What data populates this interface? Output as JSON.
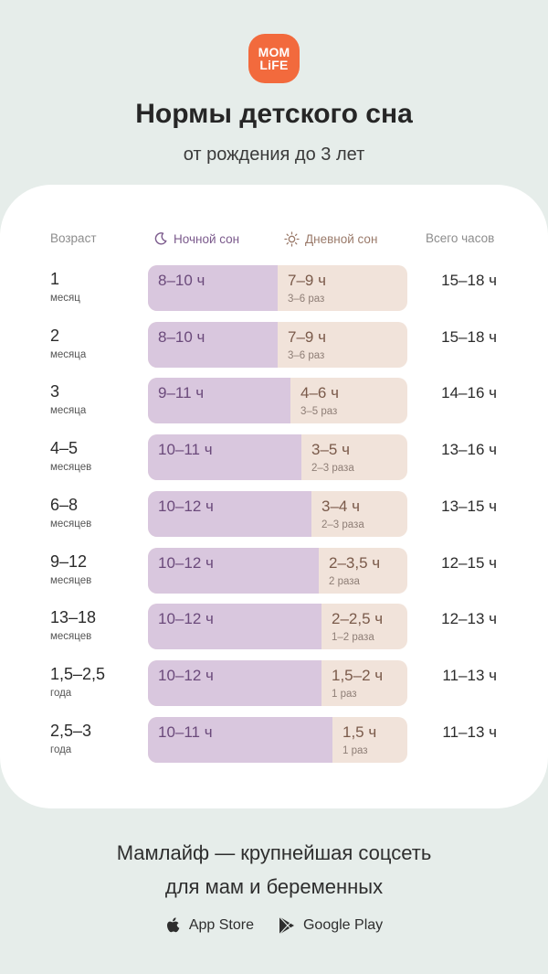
{
  "logo": {
    "line1": "MOM",
    "line2": "LiFE",
    "color": "#F26A3D"
  },
  "title": "Нормы детского сна",
  "subtitle": "от рождения до 3 лет",
  "table": {
    "headers": {
      "age": "Возраст",
      "night": "Ночной сон",
      "night_icon": "moon-icon",
      "day": "Дневной сон",
      "day_icon": "sun-icon",
      "total": "Всего часов"
    },
    "rows": [
      {
        "age": "1",
        "unit": "месяц",
        "night": "8–10 ч",
        "day": "7–9 ч",
        "day_times": "3–6 раз",
        "total": "15–18 ч",
        "night_share": 0.5
      },
      {
        "age": "2",
        "unit": "месяца",
        "night": "8–10 ч",
        "day": "7–9 ч",
        "day_times": "3–6 раз",
        "total": "15–18 ч",
        "night_share": 0.5
      },
      {
        "age": "3",
        "unit": "месяца",
        "night": "9–11 ч",
        "day": "4–6 ч",
        "day_times": "3–5 раз",
        "total": "14–16 ч",
        "night_share": 0.55
      },
      {
        "age": "4–5",
        "unit": "месяцев",
        "night": "10–11 ч",
        "day": "3–5 ч",
        "day_times": "2–3 раза",
        "total": "13–16 ч",
        "night_share": 0.59
      },
      {
        "age": "6–8",
        "unit": "месяцев",
        "night": "10–12 ч",
        "day": "3–4 ч",
        "day_times": "2–3 раза",
        "total": "13–15 ч",
        "night_share": 0.63
      },
      {
        "age": "9–12",
        "unit": "месяцев",
        "night": "10–12 ч",
        "day": "2–3,5 ч",
        "day_times": "2 раза",
        "total": "12–15 ч",
        "night_share": 0.66
      },
      {
        "age": "13–18",
        "unit": "месяцев",
        "night": "10–12 ч",
        "day": "2–2,5 ч",
        "day_times": "1–2 раза",
        "total": "12–13 ч",
        "night_share": 0.67
      },
      {
        "age": "1,5–2,5",
        "unit": "года",
        "night": "10–12 ч",
        "day": "1,5–2 ч",
        "day_times": "1 раз",
        "total": "11–13 ч",
        "night_share": 0.67
      },
      {
        "age": "2,5–3",
        "unit": "года",
        "night": "10–11 ч",
        "day": "1,5 ч",
        "day_times": "1 раз",
        "total": "11–13 ч",
        "night_share": 0.71
      }
    ]
  },
  "footer": {
    "line1": "Мамлайф — крупнейшая соцсеть",
    "line2": "для мам и беременных",
    "app_store": "App Store",
    "app_store_icon": "apple-icon",
    "google_play": "Google Play",
    "google_play_icon": "play-icon"
  }
}
